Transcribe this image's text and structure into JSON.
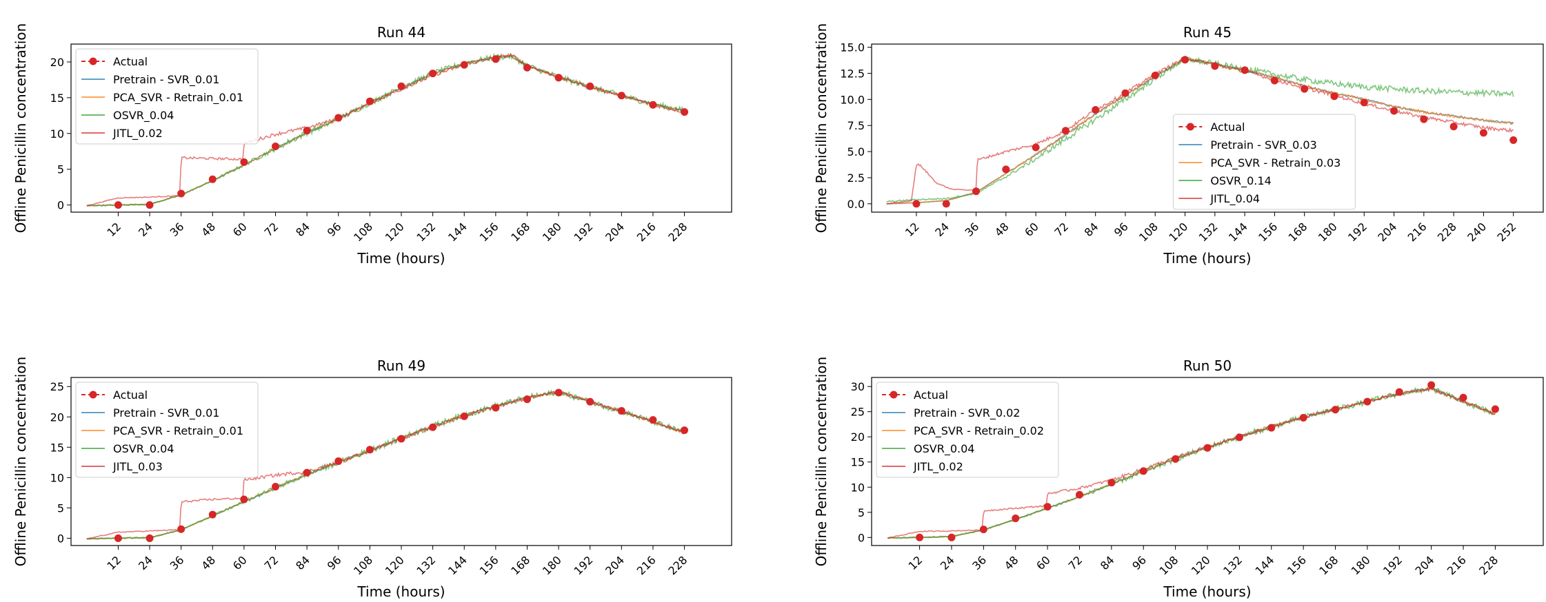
{
  "figure": {
    "ylabel": "Offline Penicillin concentration",
    "xlabel": "Time (hours)"
  },
  "colors": {
    "actual": "#d62728",
    "pretrain": "#1f77b4",
    "pca_svr": "#ff7f0e",
    "osvr": "#2ca02c",
    "jitl": "#d62728"
  },
  "chart_data": [
    {
      "type": "line",
      "title": "Run 44",
      "xlabel": "Time (hours)",
      "ylabel": "Offline Penicillin concentration",
      "xlim": [
        -6,
        246
      ],
      "ylim": [
        -1,
        22.5
      ],
      "xticks": [
        12,
        24,
        36,
        48,
        60,
        72,
        84,
        96,
        108,
        120,
        132,
        144,
        156,
        168,
        180,
        192,
        204,
        216,
        228
      ],
      "yticks": [
        0,
        5,
        10,
        15,
        20
      ],
      "ytick_labels": [
        "0",
        "5",
        "10",
        "15",
        "20"
      ],
      "legend": [
        "Actual",
        "Pretrain - SVR_0.01",
        "PCA_SVR - Retrain_0.01",
        "OSVR_0.04",
        "JITL_0.02"
      ],
      "legend_position": "upper-left",
      "end_time": 228,
      "actual": {
        "x": [
          12,
          24,
          36,
          48,
          60,
          72,
          84,
          96,
          108,
          120,
          132,
          144,
          156,
          168,
          180,
          192,
          204,
          216,
          228
        ],
        "y": [
          0,
          0,
          1.6,
          3.6,
          6,
          8.2,
          10.4,
          12.2,
          14.5,
          16.6,
          18.4,
          19.6,
          20.4,
          19.2,
          17.8,
          16.6,
          15.3,
          14,
          13
        ]
      },
      "shape": {
        "x": [
          0,
          12,
          24,
          36,
          48,
          60,
          72,
          84,
          96,
          108,
          120,
          132,
          144,
          156,
          162,
          168,
          180,
          192,
          204,
          216,
          228
        ],
        "y": [
          -0.1,
          0,
          0.1,
          1.4,
          3.4,
          5.6,
          7.9,
          10.1,
          12,
          14.3,
          16.4,
          18.4,
          19.8,
          20.7,
          20.8,
          19.5,
          17.9,
          16.5,
          15.3,
          14.1,
          13.2
        ]
      },
      "jitl_shape": {
        "x": [
          0,
          12,
          24,
          35.5,
          36,
          48,
          59.5,
          60,
          72,
          84,
          96,
          108,
          120,
          132,
          144,
          156,
          162,
          168,
          180,
          192,
          204,
          216,
          228
        ],
        "y": [
          -0.1,
          1,
          1.1,
          1.3,
          6.6,
          6.5,
          6.4,
          8.6,
          9.9,
          10.8,
          12.1,
          14.2,
          16.2,
          18.1,
          19.6,
          20.6,
          21,
          19.5,
          17.9,
          16.5,
          15.3,
          14,
          13
        ]
      }
    },
    {
      "type": "line",
      "title": "Run 45",
      "xlabel": "Time (hours)",
      "ylabel": "Offline Penicillin concentration",
      "xlim": [
        -6,
        264
      ],
      "ylim": [
        -0.8,
        15.3
      ],
      "xticks": [
        12,
        24,
        36,
        48,
        60,
        72,
        84,
        96,
        108,
        120,
        132,
        144,
        156,
        168,
        180,
        192,
        204,
        216,
        228,
        240,
        252
      ],
      "yticks": [
        0,
        2.5,
        5,
        7.5,
        10,
        12.5,
        15
      ],
      "ytick_labels": [
        "0.0",
        "2.5",
        "5.0",
        "7.5",
        "10.0",
        "12.5",
        "15.0"
      ],
      "legend": [
        "Actual",
        "Pretrain - SVR_0.03",
        "PCA_SVR - Retrain_0.03",
        "OSVR_0.14",
        "JITL_0.04"
      ],
      "legend_position": "center",
      "end_time": 252,
      "actual": {
        "x": [
          12,
          24,
          36,
          48,
          60,
          72,
          84,
          96,
          108,
          120,
          132,
          144,
          156,
          168,
          180,
          192,
          204,
          216,
          228,
          240,
          252
        ],
        "y": [
          0,
          0,
          1.2,
          3.3,
          5.4,
          7,
          9,
          10.6,
          12.3,
          13.8,
          13.2,
          12.8,
          11.8,
          11.0,
          10.3,
          9.7,
          8.9,
          8.1,
          7.4,
          6.8,
          6.1
        ]
      },
      "shape": {
        "x": [
          0,
          12,
          24,
          36,
          48,
          60,
          72,
          84,
          96,
          108,
          120,
          132,
          144,
          156,
          168,
          180,
          192,
          204,
          216,
          228,
          240,
          252
        ],
        "y": [
          0,
          0.1,
          0.3,
          1.1,
          2.9,
          4.7,
          6.6,
          8.6,
          10.4,
          12.2,
          13.9,
          13.4,
          12.8,
          12.1,
          11.3,
          10.6,
          10.0,
          9.3,
          8.8,
          8.4,
          8.0,
          7.7
        ]
      },
      "osvr_shape": {
        "x": [
          0,
          12,
          24,
          36,
          48,
          60,
          72,
          84,
          96,
          108,
          120,
          132,
          144,
          156,
          168,
          180,
          192,
          204,
          216,
          228,
          240,
          252
        ],
        "y": [
          0.2,
          0.4,
          0.5,
          1.0,
          2.6,
          4.3,
          6.2,
          8.1,
          10.0,
          12.0,
          13.9,
          13.4,
          12.9,
          12.4,
          11.9,
          11.5,
          11.2,
          11.0,
          10.8,
          10.7,
          10.6,
          10.5
        ]
      },
      "jitl_shape": {
        "x": [
          0,
          10,
          12,
          14,
          20,
          26,
          36,
          36.5,
          48,
          60,
          72,
          84,
          96,
          108,
          120,
          132,
          144,
          156,
          168,
          180,
          192,
          204,
          216,
          228,
          240,
          252
        ],
        "y": [
          0,
          0.3,
          3.8,
          3.6,
          2.0,
          1.4,
          1.3,
          4.2,
          5.0,
          5.7,
          7.0,
          9.0,
          10.6,
          12.4,
          14.0,
          13.3,
          12.7,
          11.9,
          11.1,
          10.4,
          9.6,
          8.9,
          8.3,
          7.8,
          7.3,
          7.0
        ]
      }
    },
    {
      "type": "line",
      "title": "Run 49",
      "xlabel": "Time (hours)",
      "ylabel": "Offline Penicillin concentration",
      "xlim": [
        -6,
        246
      ],
      "ylim": [
        -1.2,
        26.5
      ],
      "xticks": [
        12,
        24,
        36,
        48,
        60,
        72,
        84,
        96,
        108,
        120,
        132,
        144,
        156,
        168,
        180,
        192,
        204,
        216,
        228
      ],
      "yticks": [
        0,
        5,
        10,
        15,
        20,
        25
      ],
      "ytick_labels": [
        "0",
        "5",
        "10",
        "15",
        "20",
        "25"
      ],
      "legend": [
        "Actual",
        "Pretrain - SVR_0.01",
        "PCA_SVR - Retrain_0.01",
        "OSVR_0.04",
        "JITL_0.03"
      ],
      "legend_position": "upper-left",
      "end_time": 228,
      "actual": {
        "x": [
          12,
          24,
          36,
          48,
          60,
          72,
          84,
          96,
          108,
          120,
          132,
          144,
          156,
          168,
          180,
          192,
          204,
          216,
          228
        ],
        "y": [
          0,
          0,
          1.5,
          3.9,
          6.4,
          8.5,
          10.8,
          12.7,
          14.6,
          16.4,
          18.3,
          20.1,
          21.5,
          22.9,
          24,
          22.5,
          21,
          19.5,
          17.8
        ]
      },
      "shape": {
        "x": [
          0,
          12,
          24,
          36,
          48,
          60,
          72,
          84,
          96,
          108,
          120,
          132,
          144,
          156,
          168,
          180,
          192,
          204,
          216,
          228
        ],
        "y": [
          -0.1,
          0,
          0.1,
          1.4,
          3.7,
          6,
          8.3,
          10.5,
          12.5,
          14.5,
          16.5,
          18.5,
          20.3,
          21.8,
          23.2,
          24.1,
          22.5,
          20.9,
          19.2,
          17.4
        ]
      },
      "jitl_shape": {
        "x": [
          0,
          12,
          24,
          35.5,
          36,
          48,
          59.5,
          60,
          72,
          84,
          96,
          108,
          120,
          132,
          144,
          156,
          168,
          180,
          192,
          204,
          216,
          228
        ],
        "y": [
          -0.1,
          1,
          1.2,
          1.4,
          6,
          6.4,
          6.6,
          9.6,
          10.4,
          11,
          12.5,
          14.5,
          16.4,
          18.3,
          20.2,
          21.7,
          23.1,
          24.1,
          22.5,
          20.9,
          19.2,
          17.4
        ]
      }
    },
    {
      "type": "line",
      "title": "Run 50",
      "xlabel": "Time (hours)",
      "ylabel": "Offline Penicillin concentration",
      "xlim": [
        -6,
        246
      ],
      "ylim": [
        -1.6,
        31.8
      ],
      "xticks": [
        12,
        24,
        36,
        48,
        60,
        72,
        84,
        96,
        108,
        120,
        132,
        144,
        156,
        168,
        180,
        192,
        204,
        216,
        228
      ],
      "yticks": [
        0,
        5,
        10,
        15,
        20,
        25,
        30
      ],
      "ytick_labels": [
        "0",
        "5",
        "10",
        "15",
        "20",
        "25",
        "30"
      ],
      "legend": [
        "Actual",
        "Pretrain - SVR_0.02",
        "PCA_SVR - Retrain_0.02",
        "OSVR_0.04",
        "JITL_0.02"
      ],
      "legend_position": "upper-left",
      "end_time": 228,
      "actual": {
        "x": [
          12,
          24,
          36,
          48,
          60,
          72,
          84,
          96,
          108,
          120,
          132,
          144,
          156,
          168,
          180,
          192,
          204,
          216,
          228
        ],
        "y": [
          0,
          0,
          1.6,
          3.8,
          6.1,
          8.5,
          10.9,
          13.2,
          15.6,
          17.8,
          19.9,
          21.8,
          23.8,
          25.4,
          27,
          28.9,
          30.3,
          27.8,
          25.5
        ]
      },
      "shape": {
        "x": [
          0,
          12,
          24,
          36,
          48,
          60,
          72,
          84,
          96,
          108,
          120,
          132,
          144,
          156,
          168,
          180,
          192,
          204,
          216,
          228
        ],
        "y": [
          -0.1,
          0,
          0.2,
          1.5,
          3.6,
          5.8,
          8.1,
          10.6,
          13.1,
          15.6,
          17.9,
          20,
          22,
          23.9,
          25.5,
          27,
          28.6,
          29.6,
          27.0,
          24.5
        ]
      },
      "jitl_shape": {
        "x": [
          0,
          12,
          24,
          35.5,
          36,
          48,
          59.5,
          60,
          72,
          84,
          96,
          108,
          120,
          132,
          144,
          156,
          168,
          180,
          192,
          204,
          216,
          228
        ],
        "y": [
          -0.1,
          1.2,
          1.3,
          1.5,
          5.3,
          5.8,
          6.3,
          8.7,
          9.8,
          11.4,
          13.6,
          15.8,
          18,
          20,
          22,
          23.9,
          25.5,
          27,
          28.6,
          29.6,
          27.0,
          24.5
        ]
      }
    }
  ]
}
